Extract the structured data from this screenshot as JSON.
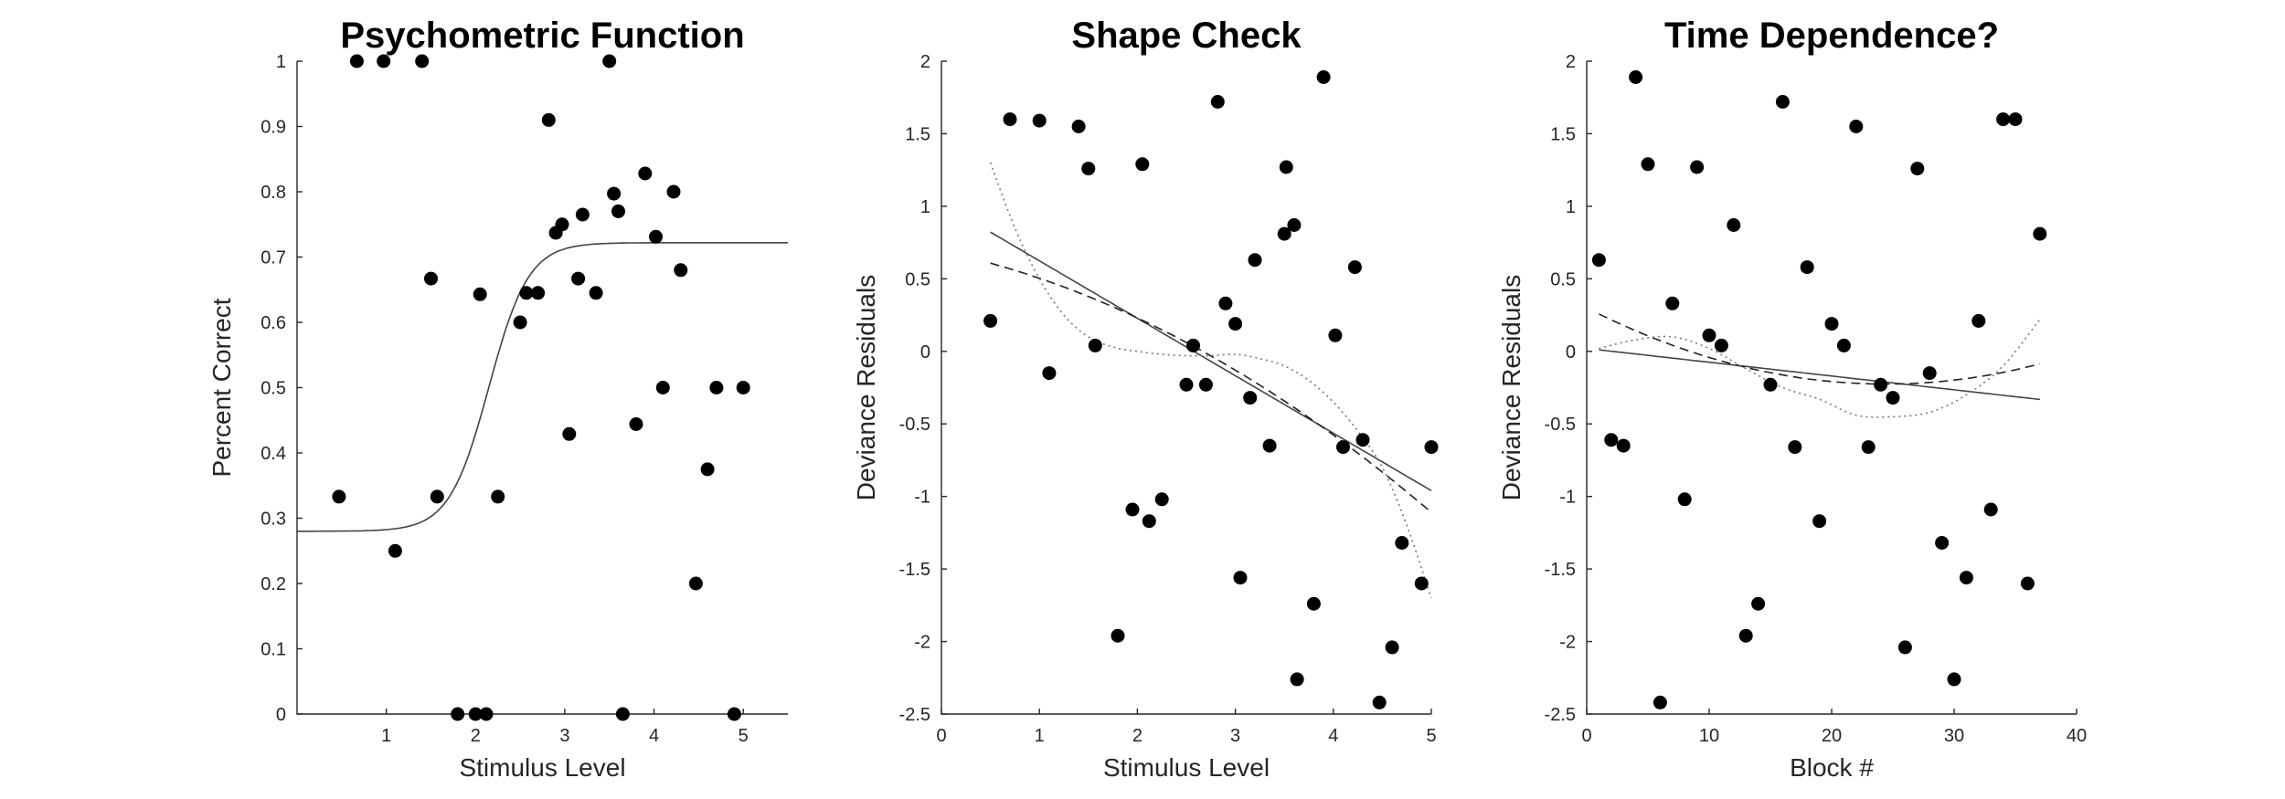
{
  "chart_data": [
    {
      "type": "scatter",
      "title": "Psychometric Function",
      "xlabel": "Stimulus Level",
      "ylabel": "Percent Correct",
      "xlim": [
        0,
        5.5
      ],
      "ylim": [
        0,
        1
      ],
      "xticks": [
        1,
        2,
        3,
        4,
        5
      ],
      "yticks": [
        0,
        0.1,
        0.2,
        0.3,
        0.4,
        0.5,
        0.6,
        0.7,
        0.8,
        0.9,
        1
      ],
      "ytick_labels": [
        "0",
        "0.1",
        "0.2",
        "0.3",
        "0.4",
        "0.5",
        "0.6",
        "0.7",
        "0.8",
        "0.9",
        "1"
      ],
      "grid": false,
      "points": [
        [
          0.47,
          0.333
        ],
        [
          0.67,
          1.0
        ],
        [
          0.97,
          1.0
        ],
        [
          1.1,
          0.25
        ],
        [
          1.4,
          1.0
        ],
        [
          1.5,
          0.667
        ],
        [
          1.57,
          0.333
        ],
        [
          1.8,
          0.0
        ],
        [
          2.0,
          0.0
        ],
        [
          2.05,
          0.643
        ],
        [
          2.12,
          0.0
        ],
        [
          2.25,
          0.333
        ],
        [
          2.5,
          0.6
        ],
        [
          2.57,
          0.645
        ],
        [
          2.7,
          0.645
        ],
        [
          2.82,
          0.91
        ],
        [
          2.9,
          0.737
        ],
        [
          2.97,
          0.75
        ],
        [
          3.05,
          0.429
        ],
        [
          3.15,
          0.667
        ],
        [
          3.2,
          0.765
        ],
        [
          3.35,
          0.645
        ],
        [
          3.5,
          1.0
        ],
        [
          3.55,
          0.797
        ],
        [
          3.6,
          0.77
        ],
        [
          3.65,
          0.0
        ],
        [
          3.8,
          0.444
        ],
        [
          3.9,
          0.828
        ],
        [
          4.02,
          0.731
        ],
        [
          4.1,
          0.5
        ],
        [
          4.22,
          0.8
        ],
        [
          4.3,
          0.68
        ],
        [
          4.47,
          0.2
        ],
        [
          4.6,
          0.375
        ],
        [
          4.7,
          0.5
        ],
        [
          4.9,
          0.0
        ],
        [
          5.0,
          0.5
        ]
      ],
      "fits": [
        {
          "style": "solid",
          "kind": "logistic",
          "lower": 0.28,
          "upper": 0.722,
          "midpoint": 2.15,
          "slope": 4.5
        }
      ]
    },
    {
      "type": "scatter",
      "title": "Shape Check",
      "xlabel": "Stimulus Level",
      "ylabel": "Deviance Residuals",
      "xlim": [
        0,
        5
      ],
      "ylim": [
        -2.5,
        2
      ],
      "xticks": [
        0,
        1,
        2,
        3,
        4,
        5
      ],
      "yticks": [
        -2.5,
        -2,
        -1.5,
        -1,
        -0.5,
        0,
        0.5,
        1,
        1.5,
        2
      ],
      "ytick_labels": [
        "-2.5",
        "-2",
        "-1.5",
        "-1",
        "-0.5",
        "0",
        "0.5",
        "1",
        "1.5",
        "2"
      ],
      "grid": false,
      "points": [
        [
          0.5,
          0.21
        ],
        [
          0.7,
          1.6
        ],
        [
          1.0,
          1.59
        ],
        [
          1.1,
          -0.15
        ],
        [
          1.4,
          1.55
        ],
        [
          1.5,
          1.26
        ],
        [
          1.57,
          0.04
        ],
        [
          1.8,
          -1.96
        ],
        [
          1.95,
          -1.09
        ],
        [
          2.05,
          1.29
        ],
        [
          2.12,
          -1.17
        ],
        [
          2.25,
          -1.02
        ],
        [
          2.5,
          -0.23
        ],
        [
          2.57,
          0.04
        ],
        [
          2.7,
          -0.23
        ],
        [
          2.82,
          1.72
        ],
        [
          2.9,
          0.33
        ],
        [
          3.0,
          0.19
        ],
        [
          3.05,
          -1.56
        ],
        [
          3.15,
          -0.32
        ],
        [
          3.2,
          0.63
        ],
        [
          3.35,
          -0.65
        ],
        [
          3.5,
          0.81
        ],
        [
          3.52,
          1.27
        ],
        [
          3.6,
          0.87
        ],
        [
          3.63,
          -2.26
        ],
        [
          3.8,
          -1.74
        ],
        [
          3.9,
          1.89
        ],
        [
          4.02,
          0.11
        ],
        [
          4.1,
          -0.66
        ],
        [
          4.22,
          0.58
        ],
        [
          4.3,
          -0.61
        ],
        [
          4.47,
          -2.42
        ],
        [
          4.6,
          -2.04
        ],
        [
          4.7,
          -1.32
        ],
        [
          4.9,
          -1.6
        ],
        [
          5.0,
          -0.66
        ]
      ],
      "fits": [
        {
          "style": "solid",
          "kind": "poly",
          "coef": [
            1.02,
            -0.396
          ]
        },
        {
          "style": "dashed",
          "kind": "poly",
          "coef": [
            0.69,
            -0.143,
            -0.0434
          ]
        },
        {
          "style": "dotted",
          "kind": "samples",
          "x": [
            0.5,
            0.75,
            1.0,
            1.25,
            1.5,
            1.75,
            2.0,
            2.25,
            2.5,
            2.75,
            3.0,
            3.25,
            3.5,
            3.75,
            4.0,
            4.25,
            4.5,
            4.75,
            5.0
          ],
          "y": [
            1.3,
            0.85,
            0.5,
            0.25,
            0.1,
            0.03,
            0.0,
            -0.02,
            -0.03,
            -0.03,
            -0.02,
            -0.05,
            -0.1,
            -0.2,
            -0.35,
            -0.55,
            -0.8,
            -1.2,
            -1.7
          ]
        }
      ]
    },
    {
      "type": "scatter",
      "title": "Time Dependence?",
      "xlabel": "Block #",
      "ylabel": "Deviance Residuals",
      "xlim": [
        0,
        40
      ],
      "ylim": [
        -2.5,
        2
      ],
      "xticks": [
        0,
        10,
        20,
        30,
        40
      ],
      "yticks": [
        -2.5,
        -2,
        -1.5,
        -1,
        -0.5,
        0,
        0.5,
        1,
        1.5,
        2
      ],
      "ytick_labels": [
        "-2.5",
        "-2",
        "-1.5",
        "-1",
        "-0.5",
        "0",
        "0.5",
        "1",
        "1.5",
        "2"
      ],
      "grid": false,
      "points": [
        [
          1,
          0.63
        ],
        [
          2,
          -0.61
        ],
        [
          3,
          -0.65
        ],
        [
          4,
          1.89
        ],
        [
          5,
          1.29
        ],
        [
          6,
          -2.42
        ],
        [
          7,
          0.33
        ],
        [
          8,
          -1.02
        ],
        [
          9,
          1.27
        ],
        [
          10,
          0.11
        ],
        [
          11,
          0.04
        ],
        [
          12,
          0.87
        ],
        [
          13,
          -1.96
        ],
        [
          14,
          -1.74
        ],
        [
          15,
          -0.23
        ],
        [
          16,
          1.72
        ],
        [
          17,
          -0.66
        ],
        [
          18,
          0.58
        ],
        [
          19,
          -1.17
        ],
        [
          20,
          0.19
        ],
        [
          21,
          0.04
        ],
        [
          22,
          1.55
        ],
        [
          23,
          -0.66
        ],
        [
          24,
          -0.23
        ],
        [
          25,
          -0.32
        ],
        [
          26,
          -2.04
        ],
        [
          27,
          1.26
        ],
        [
          28,
          -0.15
        ],
        [
          29,
          -1.32
        ],
        [
          30,
          -2.26
        ],
        [
          31,
          -1.56
        ],
        [
          32,
          0.21
        ],
        [
          33,
          -1.09
        ],
        [
          34,
          1.6
        ],
        [
          35,
          1.6
        ],
        [
          36,
          -1.6
        ],
        [
          37,
          0.81
        ]
      ],
      "fits": [
        {
          "style": "solid",
          "kind": "poly",
          "coef": [
            0.02,
            -0.0095
          ]
        },
        {
          "style": "dashed",
          "kind": "poly",
          "coef": [
            0.3,
            -0.043,
            0.00088
          ]
        },
        {
          "style": "dotted",
          "kind": "samples",
          "x": [
            1,
            4,
            7,
            10,
            13,
            16,
            19,
            22,
            25,
            28,
            31,
            34,
            37
          ],
          "y": [
            0.02,
            0.08,
            0.1,
            0.02,
            -0.12,
            -0.25,
            -0.33,
            -0.44,
            -0.45,
            -0.42,
            -0.3,
            -0.1,
            0.22
          ]
        }
      ]
    }
  ]
}
